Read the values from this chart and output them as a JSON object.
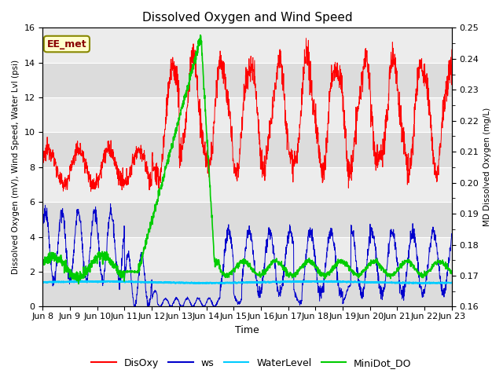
{
  "title": "Dissolved Oxygen and Wind Speed",
  "ylabel_left": "Dissolved Oxygen (mV), Wind Speed, Water Lvl (psi)",
  "ylabel_right": "MD Dissolved Oxygen (mg/L)",
  "xlabel": "Time",
  "ylim_left": [
    0,
    16
  ],
  "ylim_right": [
    0.16,
    0.25
  ],
  "x_tick_labels": [
    "Jun 8",
    "Jun 9",
    "Jun 10",
    "Jun 11",
    "Jun 12",
    "Jun 13",
    "Jun 14",
    "Jun 15",
    "Jun 16",
    "Jun 17",
    "Jun 18",
    "Jun 19",
    "Jun 20",
    "Jun 21",
    "Jun 22",
    "Jun 23"
  ],
  "annotation_text": "EE_met",
  "annotation_box_color": "#FFFFCC",
  "annotation_border_color": "#888800",
  "colors": {
    "DisOxy": "#FF0000",
    "ws": "#0000CC",
    "WaterLevel": "#00CCFF",
    "MiniDot_DO": "#00CC00"
  },
  "legend_labels": [
    "DisOxy",
    "ws",
    "WaterLevel",
    "MiniDot_DO"
  ],
  "bg_color_light": "#ECECEC",
  "bg_color_dark": "#DCDCDC",
  "grid_color": "#FFFFFF"
}
